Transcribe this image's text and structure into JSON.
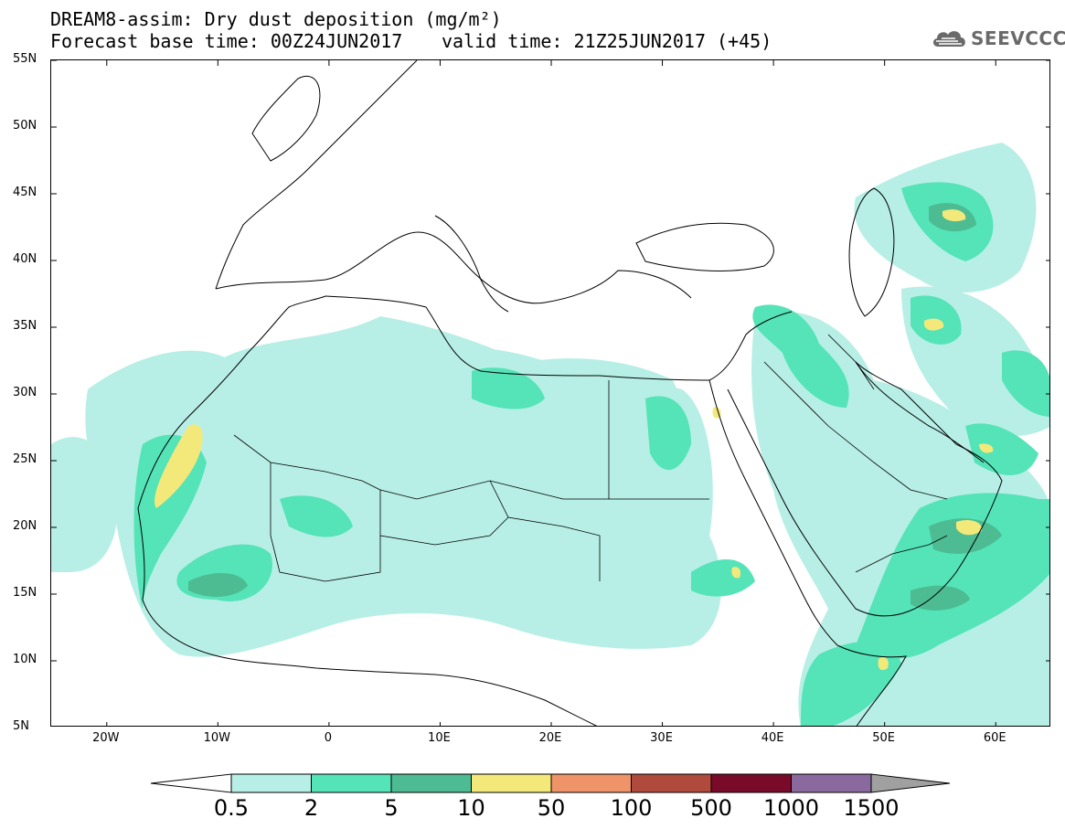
{
  "header": {
    "title": "DREAM8-assim: Dry dust deposition (mg/m²)",
    "base_time": "Forecast base time: 00Z24JUN2017",
    "valid_time": "valid time: 21Z25JUN2017 (+45)"
  },
  "logo": {
    "text": "SEEVCCC",
    "icon": "cloud-icon",
    "color": "#6a6a6a"
  },
  "map": {
    "lon_range": [
      -25,
      65
    ],
    "lat_range": [
      5,
      55
    ],
    "lat_labels": [
      "55N",
      "50N",
      "45N",
      "40N",
      "35N",
      "30N",
      "25N",
      "20N",
      "15N",
      "10N",
      "5N"
    ],
    "lon_labels": [
      "20W",
      "10W",
      "0",
      "10E",
      "20E",
      "30E",
      "40E",
      "50E",
      "60E"
    ]
  },
  "legend": {
    "labels": [
      "0.5",
      "2",
      "5",
      "10",
      "50",
      "100",
      "500",
      "1000",
      "1500"
    ],
    "colors": [
      "#b7efe6",
      "#55e3b8",
      "#4dbc93",
      "#f3e97a",
      "#ef9468",
      "#b04a3c",
      "#7a0a2a",
      "#8a6a9e",
      "#a0a0a0"
    ]
  }
}
